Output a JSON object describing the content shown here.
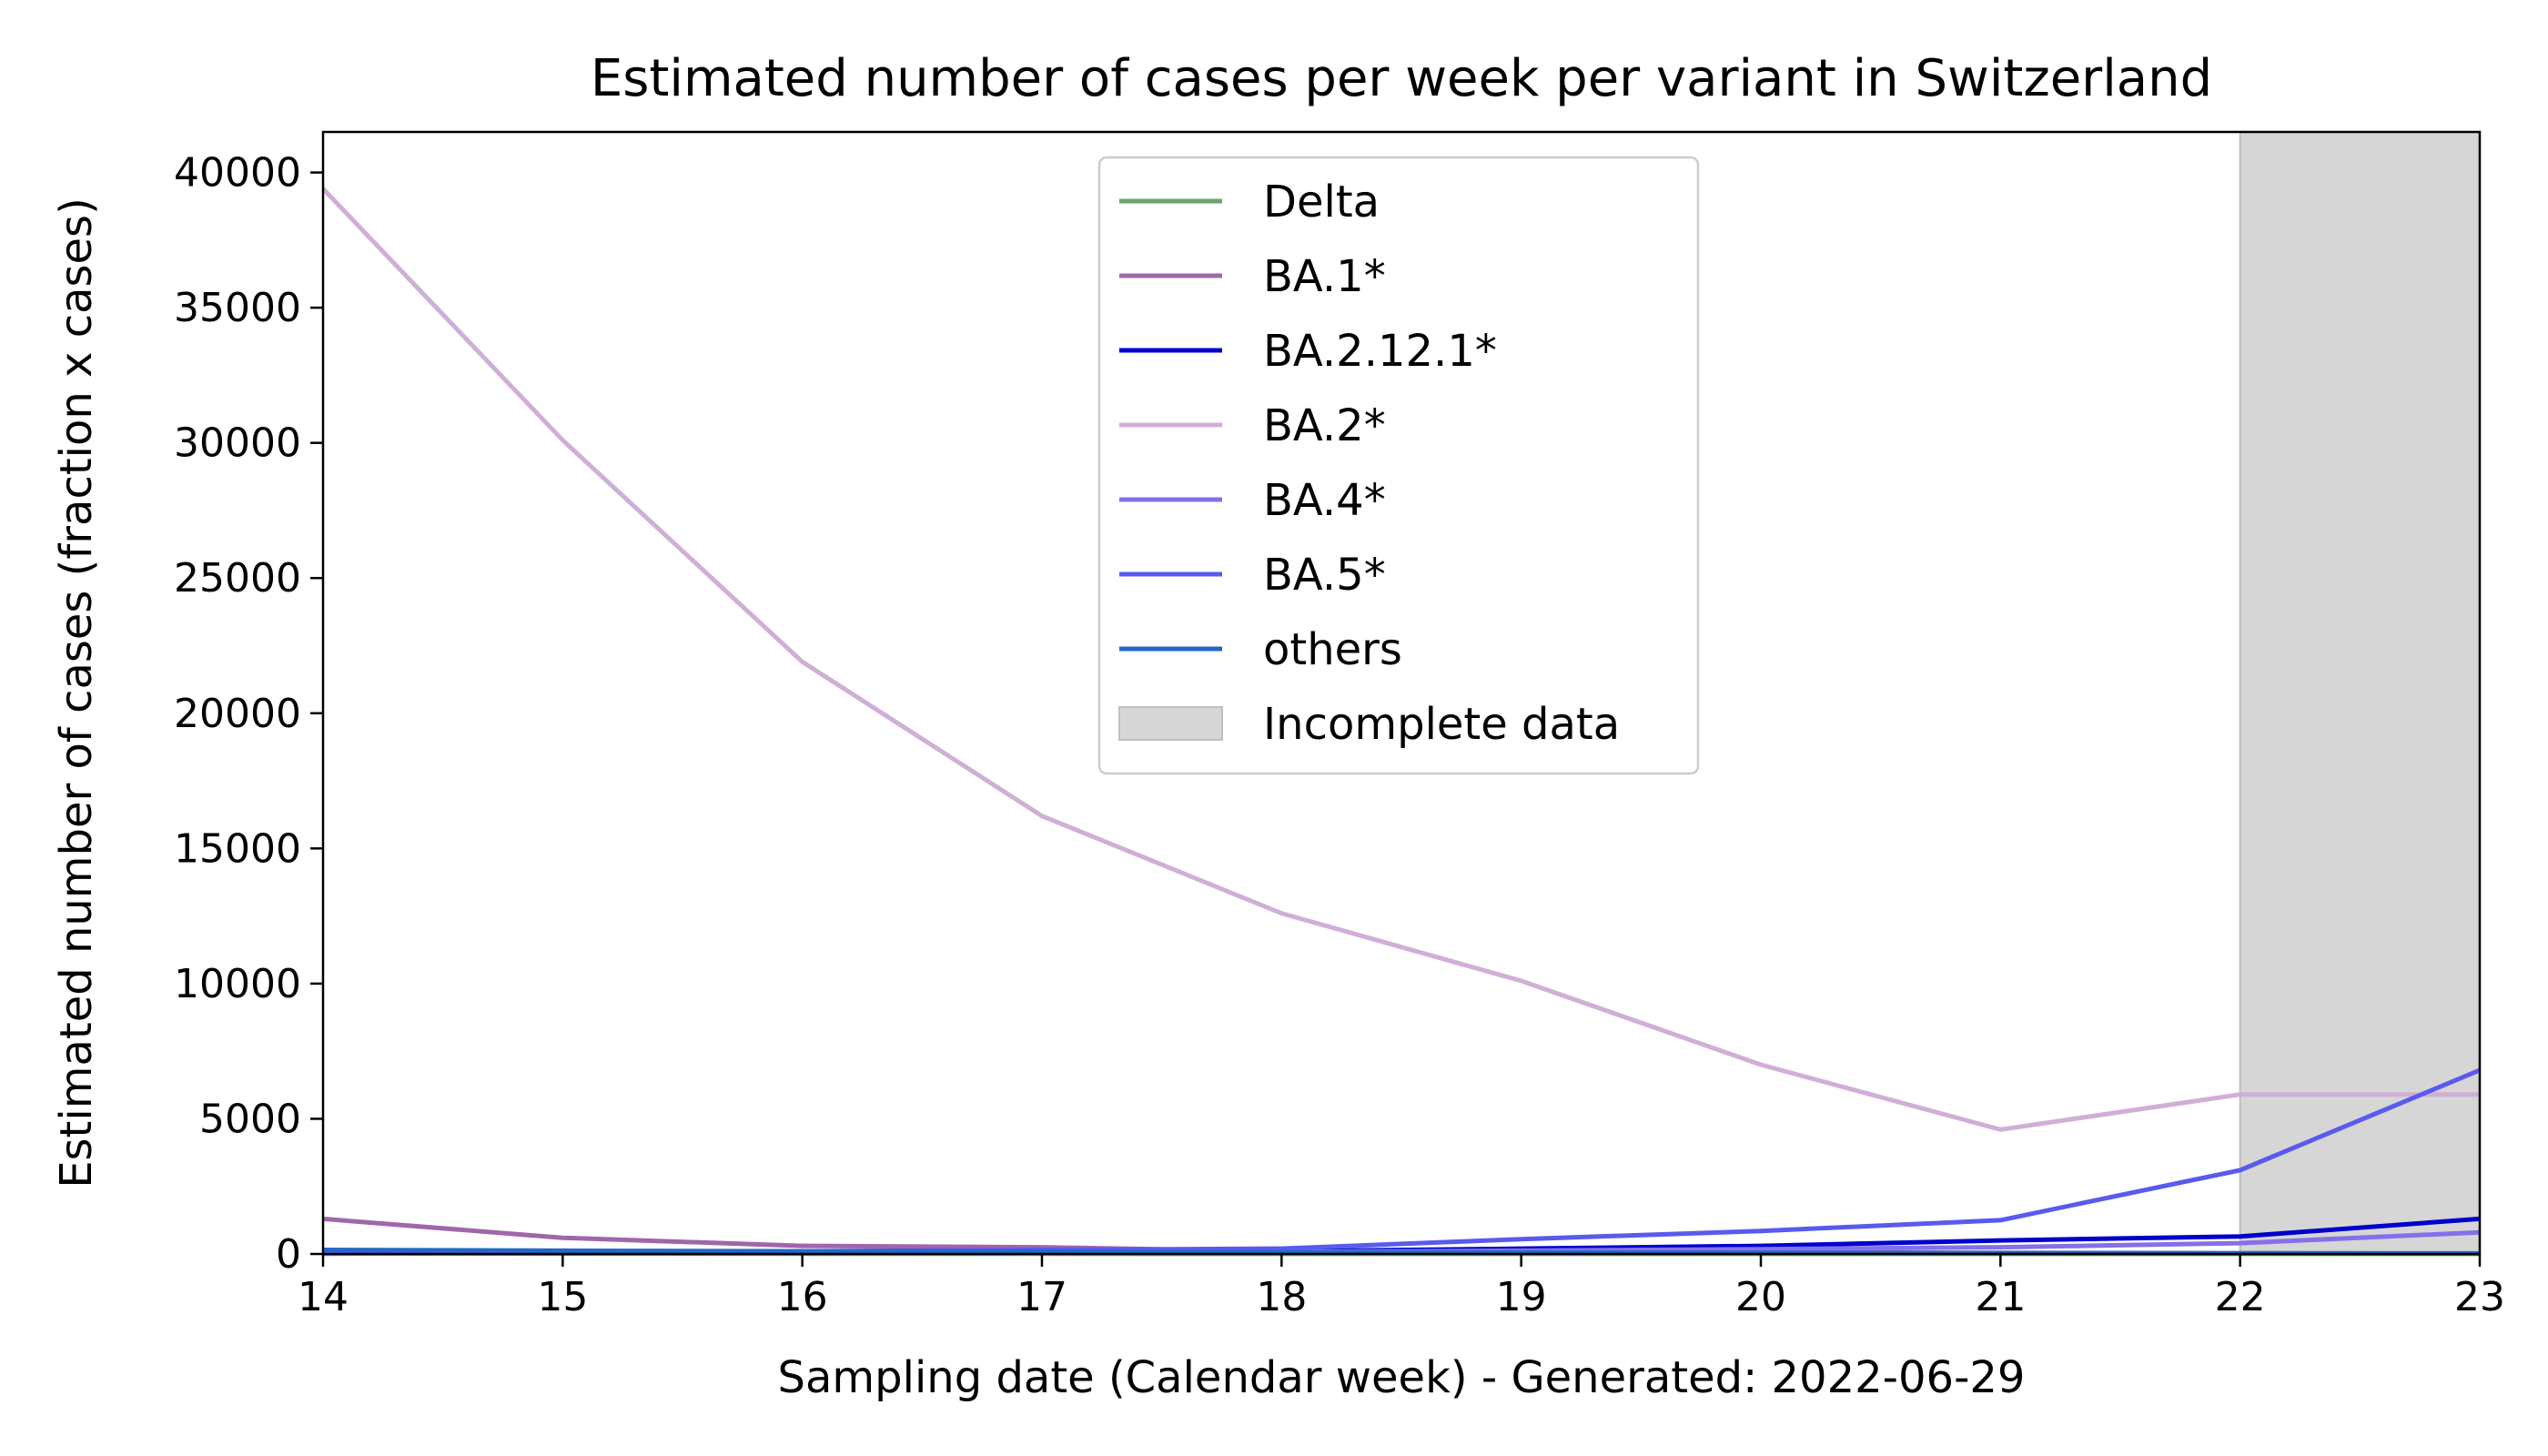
{
  "chart_data": {
    "type": "line",
    "title": "Estimated number of cases per week per variant in Switzerland",
    "xlabel": "Sampling date (Calendar week) - Generated: 2022-06-29",
    "ylabel": "Estimated number of cases (fraction x cases)",
    "x": [
      14,
      15,
      16,
      17,
      18,
      19,
      20,
      21,
      22,
      23
    ],
    "xlim": [
      14,
      23
    ],
    "ylim": [
      0,
      41500
    ],
    "xticks": [
      "14",
      "15",
      "16",
      "17",
      "18",
      "19",
      "20",
      "21",
      "22",
      "23"
    ],
    "yticks": [
      "0",
      "5000",
      "10000",
      "15000",
      "20000",
      "25000",
      "30000",
      "35000",
      "40000"
    ],
    "yticks_values": [
      0,
      5000,
      10000,
      15000,
      20000,
      25000,
      30000,
      35000,
      40000
    ],
    "grid": false,
    "legend_position": "top-center",
    "series": [
      {
        "name": "Delta",
        "color": "#6aa56e",
        "values": [
          20,
          15,
          10,
          8,
          5,
          5,
          5,
          5,
          5,
          5
        ]
      },
      {
        "name": "BA.1*",
        "color": "#a066aa",
        "values": [
          1300,
          600,
          300,
          250,
          100,
          80,
          60,
          40,
          30,
          20
        ]
      },
      {
        "name": "BA.2.12.1*",
        "color": "#0000cc",
        "values": [
          20,
          30,
          50,
          80,
          100,
          200,
          300,
          500,
          650,
          1300
        ]
      },
      {
        "name": "BA.2*",
        "color": "#d0afd7",
        "values": [
          39400,
          30100,
          21900,
          16200,
          12600,
          10100,
          7000,
          4600,
          5900,
          5900
        ]
      },
      {
        "name": "BA.4*",
        "color": "#8470e8",
        "values": [
          10,
          20,
          30,
          50,
          80,
          120,
          180,
          250,
          400,
          800
        ]
      },
      {
        "name": "BA.5*",
        "color": "#5a5aee",
        "values": [
          50,
          60,
          100,
          150,
          200,
          550,
          850,
          1250,
          3100,
          6800
        ]
      },
      {
        "name": "others",
        "color": "#2168c8",
        "values": [
          150,
          120,
          100,
          80,
          60,
          50,
          40,
          30,
          25,
          20
        ]
      }
    ],
    "shaded_region": {
      "label": "Incomplete data",
      "x_range": [
        22,
        23
      ],
      "color": "#d6d6d6"
    }
  }
}
